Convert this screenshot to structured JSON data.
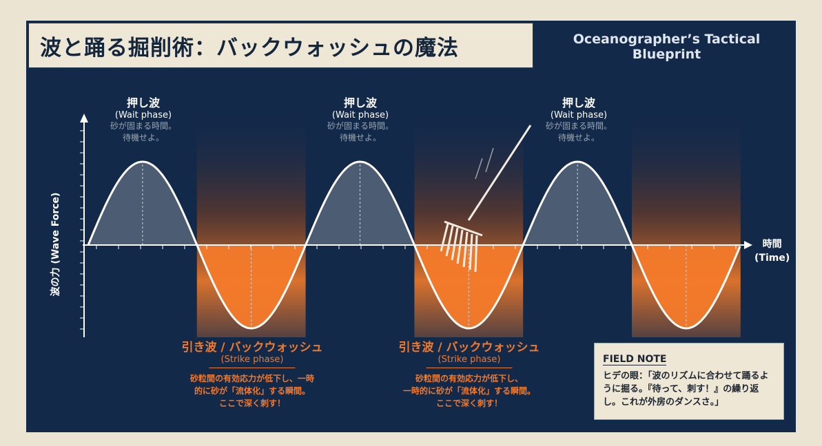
{
  "title": "波と踊る掘削術：バックウォッシュの魔法",
  "subtitle": "Oceanographer’s Tactical Blueprint",
  "axes": {
    "y_label": "波の力 (Wave Force)",
    "x_label_jp": "時間",
    "x_label_en": "(Time)"
  },
  "wait_phase": {
    "title": "押し波",
    "en": "(Wait phase)",
    "line1": "砂が固まる時間。",
    "line2": "待機せよ。"
  },
  "strike_phase": [
    {
      "title": "引き波 / バックウォッシュ",
      "en": "(Strike phase)",
      "line1": "砂粒間の有効応力が低下し、一時",
      "line2": "的に砂が「流体化」する瞬間。",
      "line3": "ここで深く刺す！"
    },
    {
      "title": "引き波 / バックウォッシュ",
      "en": "(Strike phase)",
      "line1": "砂粒間の有効応力が低下し、",
      "line2": "一時的に砂が「流体化」する瞬間。",
      "line3": "ここで深く刺す！"
    }
  ],
  "field_note": {
    "title": "FIELD NOTE",
    "body": "ヒデの眼：「波のリズムに合わせて踊るように掘る。『待って、刺す！』の繰り返し。これが外房のダンスさ。」"
  },
  "colors": {
    "panel": "#13294a",
    "strike": "#f47a2a",
    "wait_fill": "#56657a",
    "paper": "#ece4d2"
  },
  "icons": [
    "rake-icon"
  ]
}
